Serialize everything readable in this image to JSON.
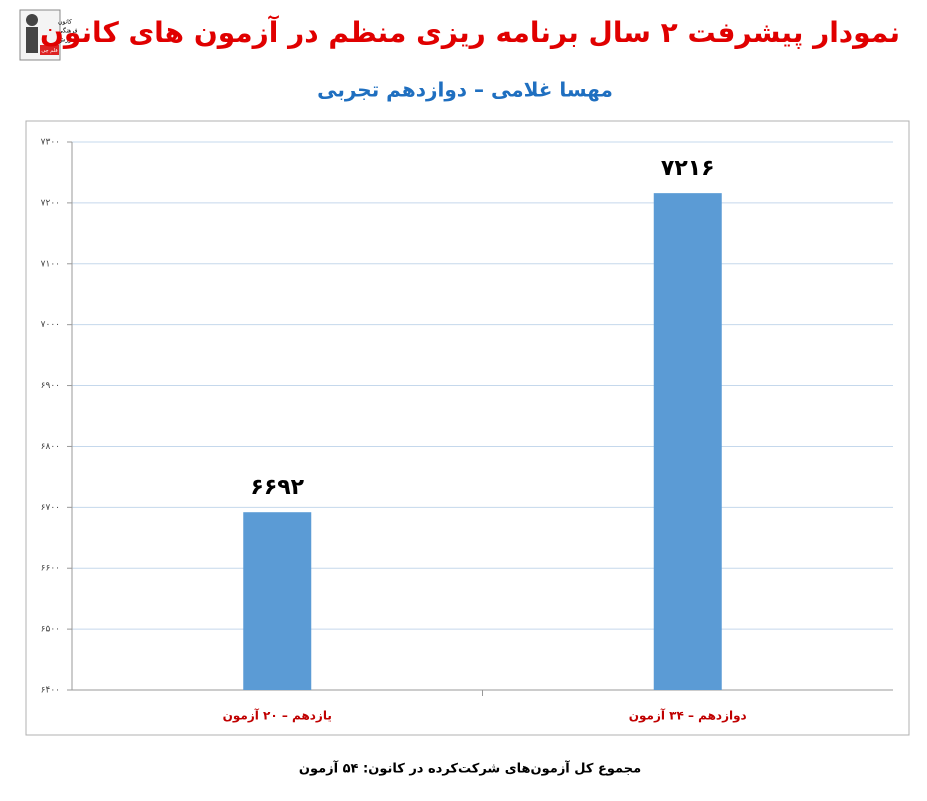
{
  "chart_data": {
    "type": "bar",
    "title": "نمودار پیشرفت ۲ سال برنامه ریزی منظم در آزمون های کانون",
    "subtitle": "مهسا غلامی – دوازدهم تجربی",
    "categories": [
      "یازدهم – ۲۰ آزمون",
      "دوازدهم – ۳۴ آزمون"
    ],
    "values": [
      6692,
      7216
    ],
    "value_labels": [
      "۶۶۹۲",
      "۷۲۱۶"
    ],
    "color": "#5b9bd5",
    "ylim": [
      6400,
      7300
    ],
    "yticks": [
      {
        "value": 6400,
        "label": "۶۴۰۰"
      },
      {
        "value": 6500,
        "label": "۶۵۰۰"
      },
      {
        "value": 6600,
        "label": "۶۶۰۰"
      },
      {
        "value": 6700,
        "label": "۶۷۰۰"
      },
      {
        "value": 6800,
        "label": "۶۸۰۰"
      },
      {
        "value": 6900,
        "label": "۶۹۰۰"
      },
      {
        "value": 7000,
        "label": "۷۰۰۰"
      },
      {
        "value": 7100,
        "label": "۷۱۰۰"
      },
      {
        "value": 7200,
        "label": "۷۲۰۰"
      },
      {
        "value": 7300,
        "label": "۷۳۰۰"
      }
    ],
    "grid": true,
    "footer": "مجموع کل آزمون‌های شرکت‌کرده در کانون:  ۵۴ آزمون"
  },
  "logo": {
    "lines": [
      "کانون",
      "فرهنگی",
      "آموزش",
      "قلم چی"
    ]
  }
}
